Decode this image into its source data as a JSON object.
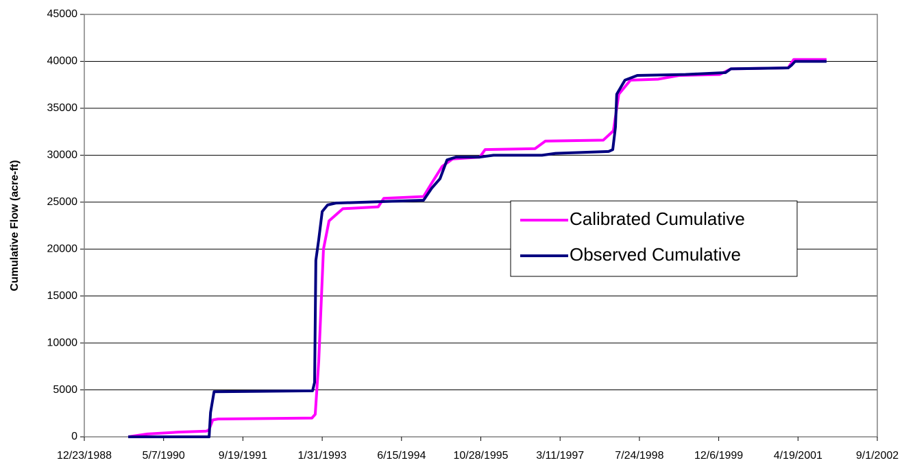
{
  "chart_data": {
    "type": "line",
    "y_axis_label": "Cumulative Flow (acre-ft)",
    "xlim": [
      "12/23/1988",
      "9/1/2002"
    ],
    "xticks": [
      "12/23/1988",
      "5/7/1990",
      "9/19/1991",
      "1/31/1993",
      "6/15/1994",
      "10/28/1995",
      "3/11/1997",
      "7/24/1998",
      "12/6/1999",
      "4/19/2001",
      "9/1/2002"
    ],
    "ylim": [
      0,
      45000
    ],
    "yticks": [
      0,
      5000,
      10000,
      15000,
      20000,
      25000,
      30000,
      35000,
      40000,
      45000
    ],
    "grid": true,
    "legend": "center-right",
    "series": [
      {
        "name": "Calibrated Cumulative",
        "color": "#ff00ff",
        "x": [
          "9/26/1989",
          "1/24/1990",
          "8/7/1990",
          "1/30/1991",
          "2/16/1991",
          "3/13/1991",
          "4/16/1991",
          "11/27/1992",
          "12/18/1992",
          "1/9/1993",
          "2/8/1993",
          "3/15/1993",
          "6/10/1993",
          "1/19/1994",
          "2/23/1994",
          "11/1/1994",
          "12/14/1994",
          "2/26/1995",
          "5/3/1995",
          "10/22/1995",
          "11/24/1995",
          "10/4/1996",
          "12/8/1996",
          "12/8/1997",
          "2/10/1998",
          "3/16/1998",
          "5/29/1998",
          "11/20/1998",
          "3/31/1999",
          "12/12/1999",
          "2/21/2000",
          "2/16/2001",
          "3/23/2001",
          "10/16/2001"
        ],
        "values": [
          0,
          300,
          500,
          600,
          700,
          1800,
          1900,
          2000,
          2400,
          8000,
          20000,
          23000,
          24300,
          24500,
          25400,
          25600,
          26800,
          28800,
          29600,
          29800,
          30600,
          30700,
          31500,
          31600,
          32600,
          36500,
          38000,
          38100,
          38500,
          38600,
          39200,
          39300,
          40200,
          40200
        ]
      },
      {
        "name": "Observed Cumulative",
        "color": "#000080",
        "x": [
          "9/26/1989",
          "2/18/1991",
          "2/27/1991",
          "3/21/1991",
          "12/1/1992",
          "12/14/1992",
          "12/22/1992",
          "1/9/1993",
          "1/31/1993",
          "3/6/1993",
          "4/27/1993",
          "11/1/1994",
          "12/23/1994",
          "2/13/1995",
          "3/29/1995",
          "5/25/1995",
          "10/22/1995",
          "1/16/1996",
          "11/17/1996",
          "2/10/1997",
          "1/11/1998",
          "2/6/1998",
          "2/23/1998",
          "3/3/1998",
          "4/24/1998",
          "7/11/1998",
          "5/10/1999",
          "1/18/2000",
          "2/21/2000",
          "2/16/2001",
          "3/10/2001",
          "4/1/2001",
          "10/16/2001"
        ],
        "values": [
          0,
          0,
          2600,
          4800,
          4900,
          5800,
          18800,
          21000,
          24000,
          24700,
          24900,
          25200,
          26500,
          27500,
          29500,
          29800,
          29800,
          30000,
          30000,
          30200,
          30400,
          30600,
          33000,
          36500,
          38000,
          38500,
          38600,
          38800,
          39200,
          39300,
          39600,
          40000,
          40000
        ]
      }
    ]
  }
}
